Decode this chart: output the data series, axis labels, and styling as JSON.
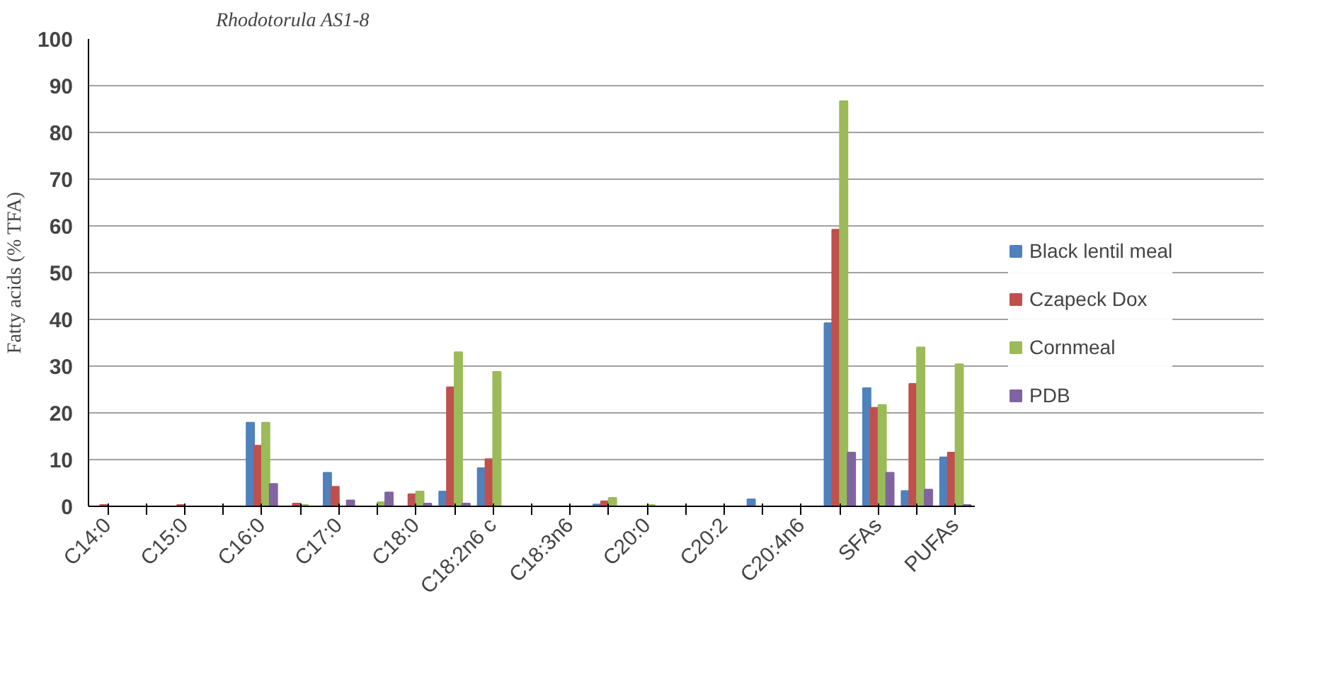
{
  "chart_data": {
    "type": "bar",
    "title": "Rhodotorula  AS1-8",
    "ylabel": "Fatty acids (% TFA)",
    "categories": [
      "C14:0",
      null,
      "C15:0",
      null,
      "C16:0",
      null,
      "C17:0",
      null,
      "C18:0",
      null,
      "C18:2n6 c",
      null,
      "C18:3n6",
      null,
      "C20:0",
      null,
      "C20:2",
      null,
      "C20:4n6",
      null,
      "SFAs",
      null,
      "PUFAs"
    ],
    "series": [
      {
        "name": "Black lentil meal",
        "color": "#4f81bd",
        "values": [
          null,
          null,
          null,
          null,
          17.9,
          null,
          7.2,
          null,
          null,
          3.2,
          8.2,
          null,
          null,
          0.4,
          null,
          null,
          null,
          1.5,
          null,
          39.2,
          25.3,
          3.3,
          10.5
        ]
      },
      {
        "name": "Czapeck Dox",
        "color": "#c0504d",
        "values": [
          0.3,
          null,
          0.3,
          null,
          13,
          0.6,
          4.2,
          null,
          2.6,
          25.5,
          10.1,
          null,
          null,
          1.1,
          null,
          null,
          null,
          null,
          null,
          59.2,
          21.1,
          26.2,
          11.5
        ]
      },
      {
        "name": "Cornmeal",
        "color": "#9bbb59",
        "values": [
          null,
          null,
          null,
          null,
          17.9,
          0.3,
          null,
          0.9,
          3.2,
          33,
          28.8,
          null,
          null,
          1.8,
          0.3,
          null,
          null,
          null,
          null,
          86.7,
          21.7,
          34,
          30.4
        ]
      },
      {
        "name": "PDB",
        "color": "#8064a2",
        "values": [
          null,
          null,
          null,
          null,
          4.8,
          null,
          1.3,
          3,
          0.6,
          0.6,
          null,
          null,
          null,
          null,
          null,
          null,
          null,
          null,
          null,
          11.5,
          7.2,
          3.6,
          0.3
        ]
      }
    ],
    "ylim": [
      0,
      100
    ],
    "yticks": [
      0,
      10,
      20,
      30,
      40,
      50,
      60,
      70,
      80,
      90,
      100
    ],
    "grid": "y",
    "legend": "right"
  }
}
